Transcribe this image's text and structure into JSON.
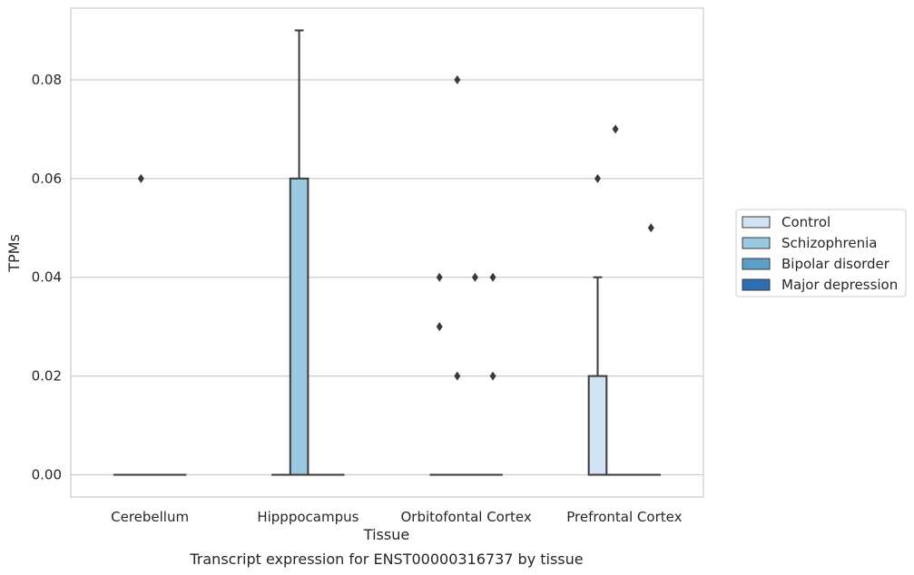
{
  "caption": "Transcript expression for ENST00000316737 by tissue",
  "chart_data": {
    "type": "box",
    "xlabel": "Tissue",
    "ylabel": "TPMs",
    "ylim": [
      -0.0045,
      0.0945
    ],
    "yticks": [
      "0.00",
      "0.02",
      "0.04",
      "0.06",
      "0.08"
    ],
    "grid": true,
    "legend_position": "right",
    "categories": [
      "Cerebellum",
      "Hipppocampus",
      "Orbitofontal Cortex",
      "Prefrontal Cortex"
    ],
    "series": [
      {
        "name": "Control",
        "color": "#d2e3f3",
        "boxes": [
          {
            "category": "Cerebellum",
            "q1": 0,
            "median": 0,
            "q3": 0,
            "whisker_low": 0,
            "whisker_high": 0,
            "outliers": []
          },
          {
            "category": "Hipppocampus",
            "q1": 0,
            "median": 0,
            "q3": 0,
            "whisker_low": 0,
            "whisker_high": 0,
            "outliers": []
          },
          {
            "category": "Orbitofontal Cortex",
            "q1": 0,
            "median": 0,
            "q3": 0,
            "whisker_low": 0,
            "whisker_high": 0,
            "outliers": [
              0.04,
              0.03
            ]
          },
          {
            "category": "Prefrontal Cortex",
            "q1": 0,
            "median": 0,
            "q3": 0.02,
            "whisker_low": 0,
            "whisker_high": 0.04,
            "outliers": [
              0.06
            ]
          }
        ]
      },
      {
        "name": "Schizophrenia",
        "color": "#9ac8e0",
        "boxes": [
          {
            "category": "Cerebellum",
            "q1": 0,
            "median": 0,
            "q3": 0,
            "whisker_low": 0,
            "whisker_high": 0,
            "outliers": [
              0.06
            ]
          },
          {
            "category": "Hipppocampus",
            "q1": 0,
            "median": 0,
            "q3": 0.06,
            "whisker_low": 0,
            "whisker_high": 0.09,
            "outliers": []
          },
          {
            "category": "Orbitofontal Cortex",
            "q1": 0,
            "median": 0,
            "q3": 0,
            "whisker_low": 0,
            "whisker_high": 0,
            "outliers": [
              0.08,
              0.02
            ]
          },
          {
            "category": "Prefrontal Cortex",
            "q1": 0,
            "median": 0,
            "q3": 0,
            "whisker_low": 0,
            "whisker_high": 0,
            "outliers": [
              0.07
            ]
          }
        ]
      },
      {
        "name": "Bipolar disorder",
        "color": "#5a9ec9",
        "boxes": [
          {
            "category": "Cerebellum",
            "q1": 0,
            "median": 0,
            "q3": 0,
            "whisker_low": 0,
            "whisker_high": 0,
            "outliers": []
          },
          {
            "category": "Hipppocampus",
            "q1": 0,
            "median": 0,
            "q3": 0,
            "whisker_low": 0,
            "whisker_high": 0,
            "outliers": []
          },
          {
            "category": "Orbitofontal Cortex",
            "q1": 0,
            "median": 0,
            "q3": 0,
            "whisker_low": 0,
            "whisker_high": 0,
            "outliers": [
              0.04
            ]
          },
          {
            "category": "Prefrontal Cortex",
            "q1": 0,
            "median": 0,
            "q3": 0,
            "whisker_low": 0,
            "whisker_high": 0,
            "outliers": []
          }
        ]
      },
      {
        "name": "Major depression",
        "color": "#2d6fb0",
        "boxes": [
          {
            "category": "Cerebellum",
            "q1": 0,
            "median": 0,
            "q3": 0,
            "whisker_low": 0,
            "whisker_high": 0,
            "outliers": []
          },
          {
            "category": "Hipppocampus",
            "q1": 0,
            "median": 0,
            "q3": 0,
            "whisker_low": 0,
            "whisker_high": 0,
            "outliers": []
          },
          {
            "category": "Orbitofontal Cortex",
            "q1": 0,
            "median": 0,
            "q3": 0,
            "whisker_low": 0,
            "whisker_high": 0,
            "outliers": [
              0.04,
              0.02
            ]
          },
          {
            "category": "Prefrontal Cortex",
            "q1": 0,
            "median": 0,
            "q3": 0,
            "whisker_low": 0,
            "whisker_high": 0,
            "outliers": [
              0.05
            ]
          }
        ]
      }
    ]
  }
}
